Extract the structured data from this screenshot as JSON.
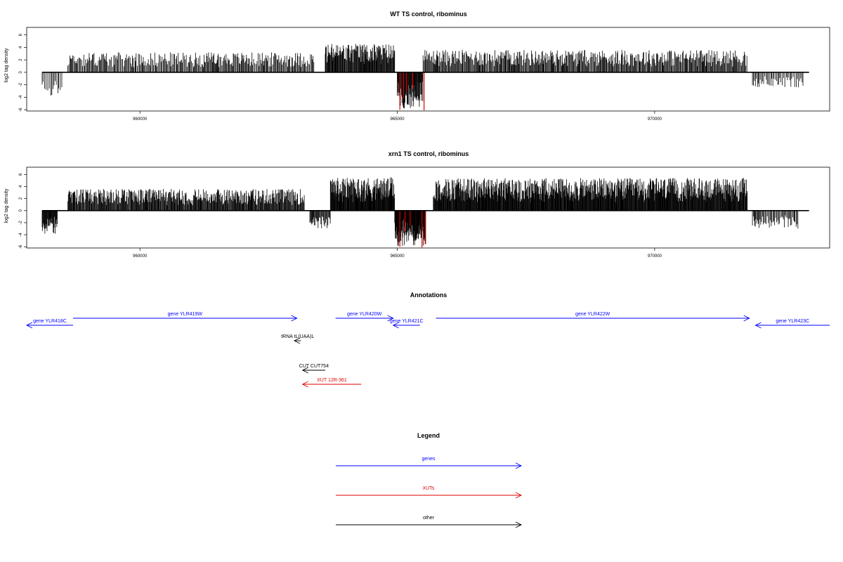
{
  "colors": {
    "gene": "#0000ff",
    "xut": "#e00000",
    "other": "#000000",
    "signal": "#000000",
    "highlight": "#e00000"
  },
  "chart_data": [
    {
      "type": "bar",
      "title": "WT TS control, ribominus",
      "ylabel": "log2 tag density",
      "xlim": [
        957800,
        973400
      ],
      "ylim": [
        -6.2,
        7.2
      ],
      "xticks": [
        960000,
        965000,
        970000
      ],
      "xtick_labels": [
        "960000",
        "965000",
        "970000"
      ],
      "yticks": [
        -6,
        -4,
        -2,
        0,
        2,
        4,
        6
      ],
      "ytick_labels": [
        "-6",
        "-4",
        "-2",
        "0",
        "2",
        "4",
        "6"
      ],
      "baseline_x": [
        958100,
        973000
      ],
      "segments": [
        {
          "x": [
            958100,
            958500
          ],
          "amp": 3.8,
          "sign": -1,
          "density": 40
        },
        {
          "x": [
            958600,
            963400
          ],
          "amp": 3.2,
          "sign": 1,
          "density": 60
        },
        {
          "x": [
            963600,
            964950
          ],
          "amp": 4.6,
          "sign": 1,
          "density": 100
        },
        {
          "x": [
            965000,
            965500
          ],
          "amp": 5.8,
          "sign": -1,
          "density": 120
        },
        {
          "x": [
            965500,
            971800
          ],
          "amp": 3.6,
          "sign": 1,
          "density": 70
        },
        {
          "x": [
            971900,
            972900
          ],
          "amp": 2.4,
          "sign": -1,
          "density": 45
        }
      ],
      "highlights": [
        {
          "x": 965050,
          "y": -6.0
        },
        {
          "x": 965120,
          "y": -4.2
        },
        {
          "x": 965180,
          "y": -3.0
        },
        {
          "x": 965300,
          "y": -2.6
        },
        {
          "x": 965520,
          "y": -6.1
        }
      ]
    },
    {
      "type": "bar",
      "title": "xrn1 TS control, ribominus",
      "ylabel": "log2 tag density",
      "xlim": [
        957800,
        973400
      ],
      "ylim": [
        -6.2,
        7.2
      ],
      "xticks": [
        960000,
        965000,
        970000
      ],
      "xtick_labels": [
        "960000",
        "965000",
        "970000"
      ],
      "yticks": [
        -6,
        -4,
        -2,
        0,
        2,
        4,
        6
      ],
      "ytick_labels": [
        "-6",
        "-4",
        "-2",
        "0",
        "2",
        "4",
        "6"
      ],
      "baseline_x": [
        958100,
        973000
      ],
      "segments": [
        {
          "x": [
            958100,
            958400
          ],
          "amp": 3.9,
          "sign": -1,
          "density": 120
        },
        {
          "x": [
            958600,
            963200
          ],
          "amp": 3.6,
          "sign": 1,
          "density": 90
        },
        {
          "x": [
            963300,
            963700
          ],
          "amp": 3.0,
          "sign": -1,
          "density": 80
        },
        {
          "x": [
            963700,
            964950
          ],
          "amp": 5.5,
          "sign": 1,
          "density": 130
        },
        {
          "x": [
            964950,
            965550
          ],
          "amp": 5.9,
          "sign": -1,
          "density": 160
        },
        {
          "x": [
            965700,
            971800
          ],
          "amp": 5.4,
          "sign": 1,
          "density": 120
        },
        {
          "x": [
            971900,
            972800
          ],
          "amp": 3.0,
          "sign": -1,
          "density": 60
        }
      ],
      "highlights": [
        {
          "x": 965050,
          "y": -6.0
        },
        {
          "x": 965150,
          "y": -3.4
        },
        {
          "x": 965250,
          "y": -2.5
        },
        {
          "x": 965480,
          "y": -6.1
        },
        {
          "x": 965550,
          "y": -5.5
        }
      ]
    },
    {
      "type": "annotation_track",
      "title": "Annotations",
      "xlim": [
        957800,
        973400
      ],
      "features": [
        {
          "label": "gene YLR418C",
          "start": 957800,
          "end": 958700,
          "strand": "-",
          "kind": "gene",
          "row": 1
        },
        {
          "label": "gene YLR419W",
          "start": 958700,
          "end": 963050,
          "strand": "+",
          "kind": "gene",
          "row": 0
        },
        {
          "label": "gene YLR420W",
          "start": 963800,
          "end": 964920,
          "strand": "+",
          "kind": "gene",
          "row": 0
        },
        {
          "label": "gene YLR421C",
          "start": 964920,
          "end": 965440,
          "strand": "-",
          "kind": "gene",
          "row": 1
        },
        {
          "label": "gene YLR422W",
          "start": 965750,
          "end": 971840,
          "strand": "+",
          "kind": "gene",
          "row": 0
        },
        {
          "label": "gene YLR423C",
          "start": 971960,
          "end": 973400,
          "strand": "-",
          "kind": "gene",
          "row": 1
        },
        {
          "label": "tRNA tL(UAA)L",
          "start": 963000,
          "end": 963130,
          "strand": "-",
          "kind": "other",
          "row": 2
        },
        {
          "label": "CUT CUT754",
          "start": 963160,
          "end": 963600,
          "strand": "-",
          "kind": "other",
          "row": 3
        },
        {
          "label": "XUT 12R-361",
          "start": 963160,
          "end": 964300,
          "strand": "-",
          "kind": "xut",
          "row": 4
        }
      ]
    },
    {
      "type": "legend",
      "title": "Legend",
      "entries": [
        {
          "label": "genes",
          "kind": "gene"
        },
        {
          "label": "XUTs",
          "kind": "xut"
        },
        {
          "label": "other",
          "kind": "other"
        }
      ]
    }
  ]
}
